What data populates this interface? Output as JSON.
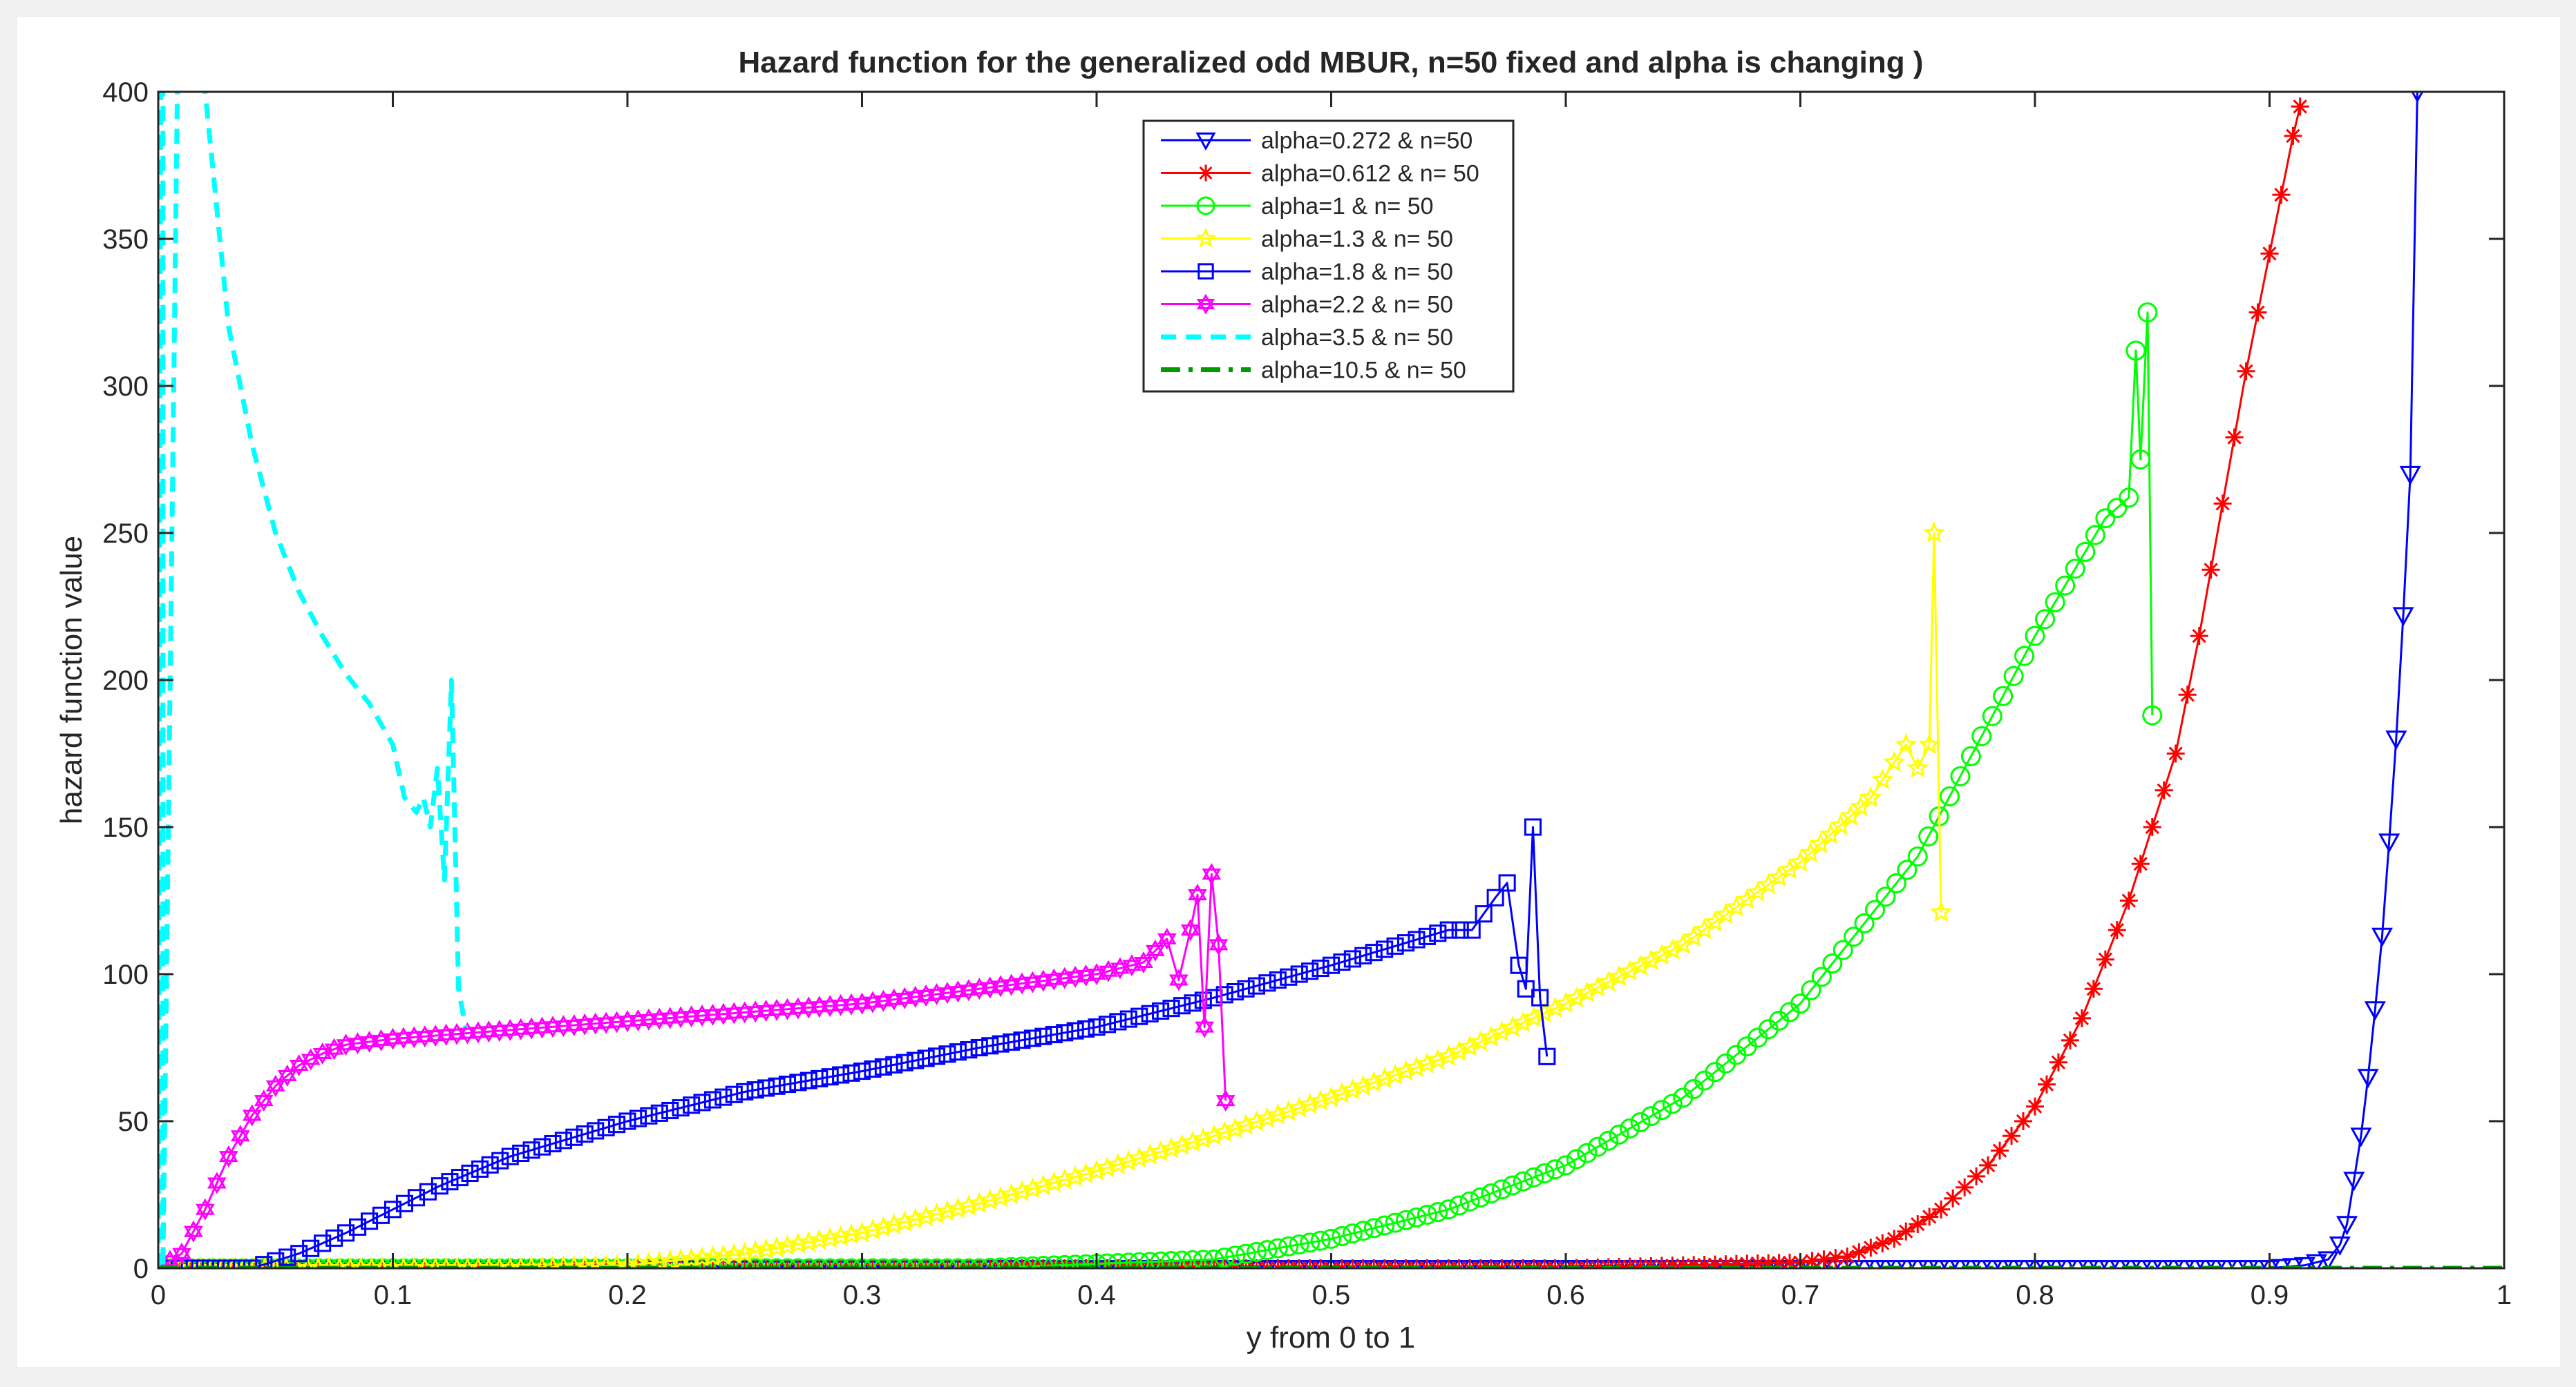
{
  "chart_data": {
    "type": "line",
    "title": "Hazard function for the generalized odd MBUR, n=50 fixed and alpha is changing )",
    "xlabel": "y from 0 to 1",
    "ylabel": "hazard function value",
    "xlim": [
      0,
      1
    ],
    "ylim": [
      0,
      400
    ],
    "xticks": [
      "0",
      "0.1",
      "0.2",
      "0.3",
      "0.4",
      "0.5",
      "0.6",
      "0.7",
      "0.8",
      "0.9",
      "1"
    ],
    "yticks": [
      "0",
      "50",
      "100",
      "150",
      "200",
      "250",
      "300",
      "350",
      "400"
    ],
    "grid": false,
    "legend_position": "top-center",
    "series": [
      {
        "name": "alpha=0.272 & n=50",
        "color": "#0000ff",
        "line": "solid",
        "marker": "triangle-down",
        "x": [
          0.0,
          0.1,
          0.2,
          0.3,
          0.4,
          0.5,
          0.6,
          0.7,
          0.8,
          0.9,
          0.915,
          0.925,
          0.93,
          0.933,
          0.936,
          0.939,
          0.942,
          0.945,
          0.948,
          0.951,
          0.954,
          0.957,
          0.96,
          0.963
        ],
        "y": [
          0,
          0,
          0,
          0,
          0,
          0,
          0,
          0,
          0,
          0,
          1,
          3,
          8,
          15,
          30,
          45,
          65,
          88,
          113,
          145,
          180,
          222,
          270,
          400
        ]
      },
      {
        "name": "alpha=0.612 & n= 50",
        "color": "#ff0000",
        "line": "solid",
        "marker": "asterisk",
        "x": [
          0.0,
          0.2,
          0.4,
          0.6,
          0.7,
          0.72,
          0.74,
          0.76,
          0.78,
          0.8,
          0.82,
          0.84,
          0.86,
          0.87,
          0.88,
          0.89,
          0.9,
          0.91,
          0.913
        ],
        "y": [
          0,
          0,
          0,
          0,
          2,
          4,
          10,
          20,
          35,
          55,
          85,
          125,
          175,
          215,
          260,
          305,
          345,
          385,
          395
        ]
      },
      {
        "name": "alpha=1 & n= 50",
        "color": "#00ff00",
        "line": "solid",
        "marker": "circle",
        "x": [
          0.0,
          0.2,
          0.35,
          0.45,
          0.5,
          0.55,
          0.6,
          0.65,
          0.7,
          0.75,
          0.8,
          0.83,
          0.84,
          0.843,
          0.845,
          0.848,
          0.85
        ],
        "y": [
          0,
          0,
          0,
          3,
          10,
          20,
          35,
          58,
          90,
          140,
          215,
          255,
          262,
          312,
          275,
          325,
          188
        ]
      },
      {
        "name": "alpha=1.3 & n= 50",
        "color": "#ffff00",
        "line": "solid",
        "marker": "star",
        "x": [
          0.0,
          0.15,
          0.2,
          0.25,
          0.3,
          0.35,
          0.4,
          0.45,
          0.5,
          0.55,
          0.6,
          0.65,
          0.7,
          0.73,
          0.745,
          0.75,
          0.755,
          0.757,
          0.76
        ],
        "y": [
          0,
          0,
          1,
          5,
          12,
          22,
          33,
          45,
          58,
          72,
          90,
          110,
          138,
          160,
          178,
          170,
          178,
          250,
          121
        ]
      },
      {
        "name": "alpha=1.8 & n= 50",
        "color": "#0000ff",
        "line": "solid",
        "marker": "square",
        "x": [
          0.0,
          0.04,
          0.06,
          0.08,
          0.1,
          0.12,
          0.15,
          0.2,
          0.25,
          0.3,
          0.35,
          0.4,
          0.45,
          0.5,
          0.55,
          0.56,
          0.57,
          0.575,
          0.58,
          0.583,
          0.586,
          0.589,
          0.592
        ],
        "y": [
          0,
          0,
          5,
          12,
          20,
          28,
          38,
          50,
          60,
          67,
          75,
          82,
          92,
          103,
          115,
          115,
          126,
          131,
          103,
          95,
          150,
          92,
          72
        ]
      },
      {
        "name": "alpha=2.2 & n= 50",
        "color": "#ff00ff",
        "line": "solid",
        "marker": "hexagram",
        "x": [
          0.0,
          0.01,
          0.02,
          0.03,
          0.04,
          0.05,
          0.06,
          0.07,
          0.08,
          0.1,
          0.15,
          0.2,
          0.25,
          0.3,
          0.35,
          0.4,
          0.42,
          0.43,
          0.435,
          0.44,
          0.443,
          0.446,
          0.449,
          0.452,
          0.455
        ],
        "y": [
          0,
          5,
          20,
          38,
          52,
          62,
          69,
          73,
          76,
          78,
          81,
          84,
          87,
          90,
          95,
          100,
          104,
          112,
          98,
          115,
          127,
          82,
          134,
          110,
          57
        ]
      },
      {
        "name": "alpha=3.5 & n= 50",
        "color": "#00ffff",
        "line": "dashed",
        "marker": "none",
        "x": [
          0.0,
          0.001,
          0.002,
          0.002,
          0.01,
          0.02,
          0.03,
          0.04,
          0.05,
          0.06,
          0.07,
          0.08,
          0.09,
          0.1,
          0.105,
          0.11,
          0.113,
          0.116,
          0.119,
          0.122,
          0.125,
          0.128,
          0.131
        ],
        "y": [
          0,
          400,
          400,
          0,
          520,
          400,
          320,
          280,
          250,
          230,
          215,
          202,
          192,
          178,
          160,
          155,
          160,
          150,
          170,
          132,
          200,
          95,
          82
        ]
      },
      {
        "name": "alpha=10.5 & n= 50",
        "color": "#009900",
        "line": "dashdot",
        "marker": "none",
        "x": [
          0.0,
          1.0
        ],
        "y": [
          0,
          0
        ]
      }
    ]
  }
}
